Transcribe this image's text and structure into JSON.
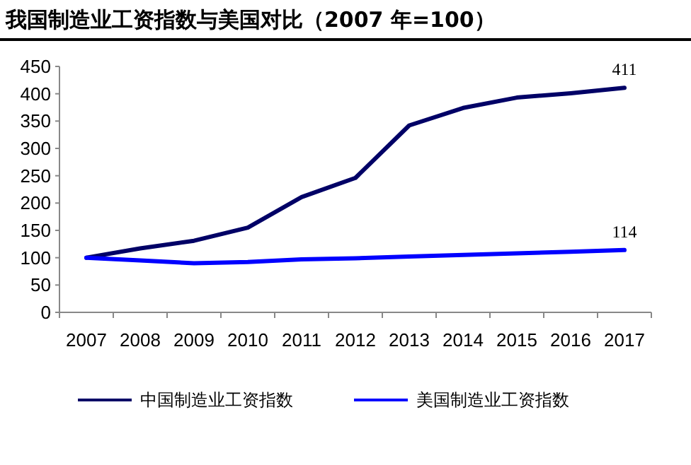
{
  "chart_data": {
    "type": "line",
    "title": "我国制造业工资指数与美国对比（2007 年=100）",
    "categories": [
      "2007",
      "2008",
      "2009",
      "2010",
      "2011",
      "2012",
      "2013",
      "2014",
      "2015",
      "2016",
      "2017"
    ],
    "series": [
      {
        "name": "中国制造业工资指数",
        "color": "#000066",
        "values": [
          100,
          117,
          131,
          155,
          211,
          246,
          342,
          374,
          393,
          401,
          411
        ]
      },
      {
        "name": "美国制造业工资指数",
        "color": "#0000ff",
        "values": [
          100,
          95,
          90,
          92,
          97,
          99,
          102,
          105,
          108,
          111,
          114
        ]
      }
    ],
    "annotations": [
      {
        "text": "411",
        "x": "2017",
        "y": 411
      },
      {
        "text": "114",
        "x": "2017",
        "y": 114
      }
    ],
    "ylim": [
      0,
      450
    ],
    "yticks": [
      0,
      50,
      100,
      150,
      200,
      250,
      300,
      350,
      400,
      450
    ],
    "grid": false,
    "legend": "bottom",
    "marker": "none",
    "line_style": "solid"
  }
}
